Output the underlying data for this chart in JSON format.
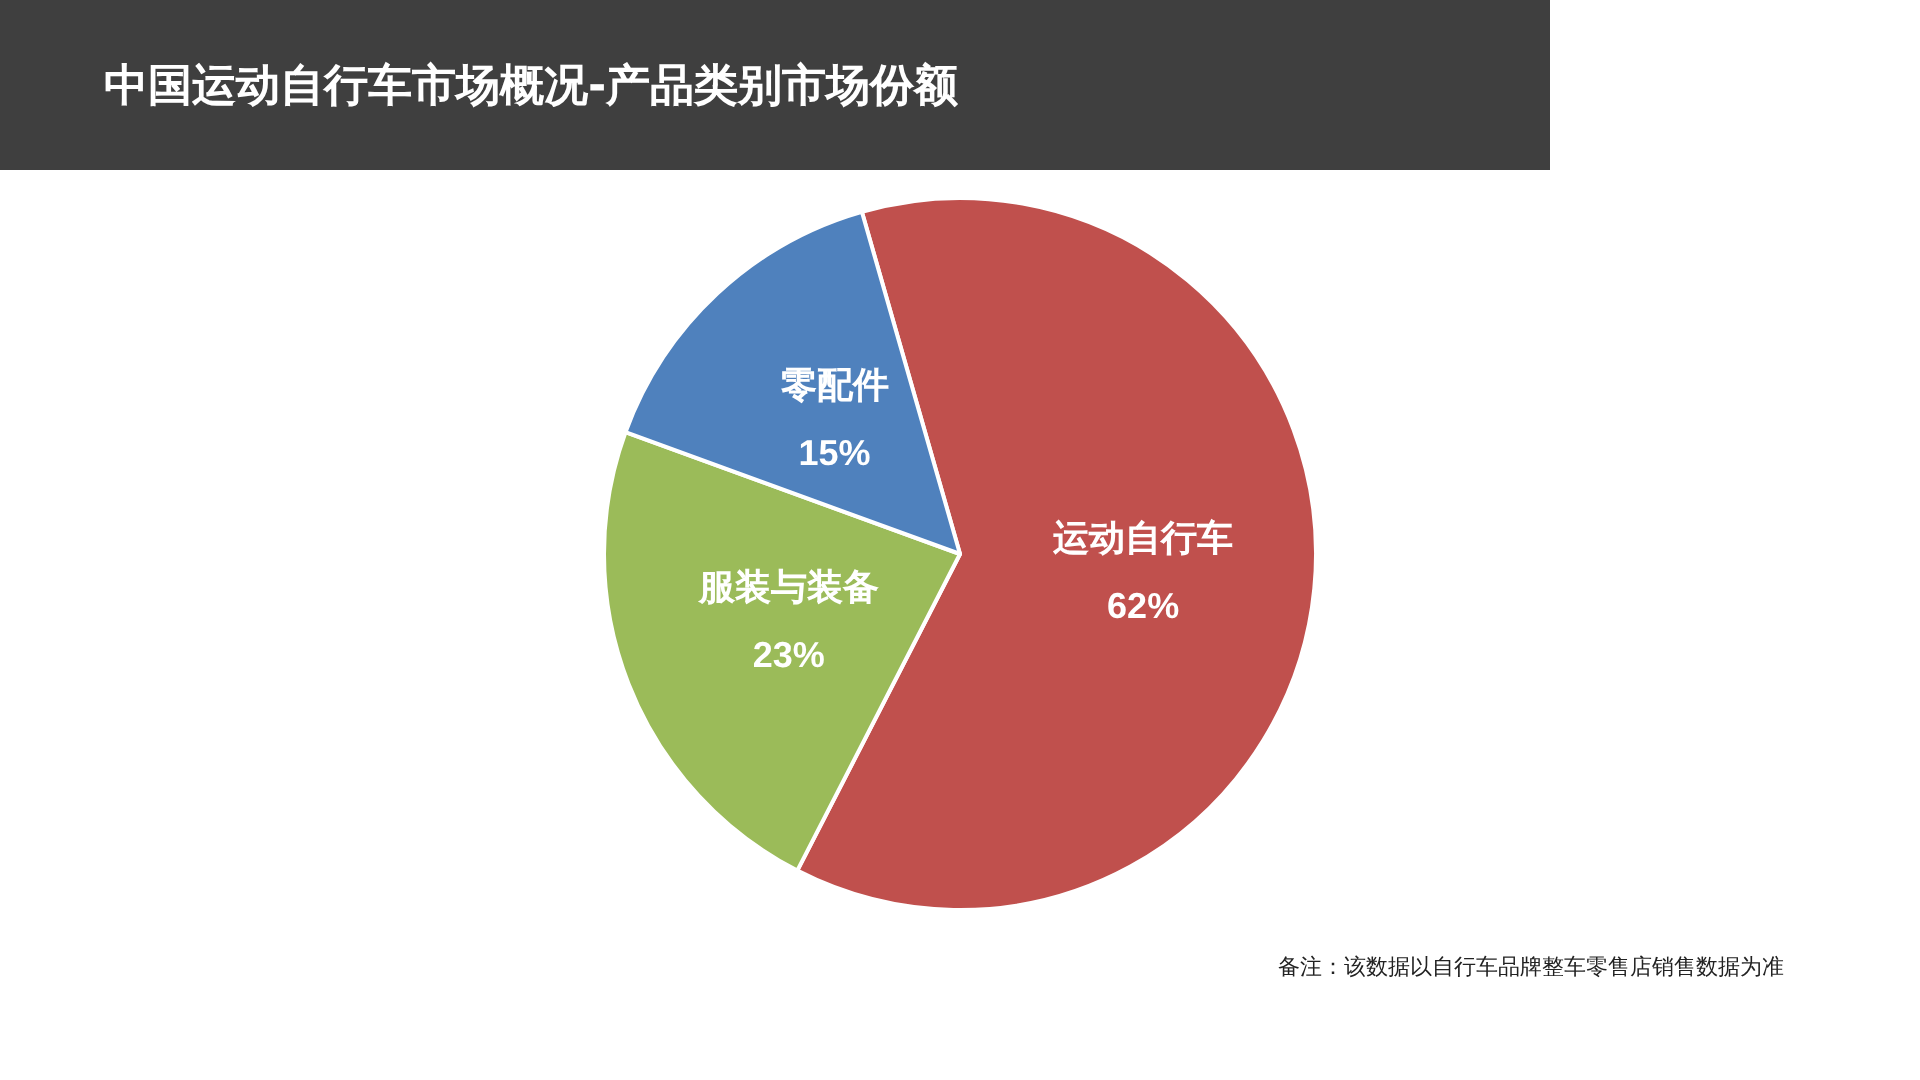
{
  "chart_data": {
    "type": "pie",
    "title": "中国运动自行车市场概况-产品类别市场份额",
    "categories": [
      "运动自行车",
      "服装与装备",
      "零配件"
    ],
    "values": [
      62,
      23,
      15
    ],
    "colors": [
      "#c0504d",
      "#9bbb59",
      "#4f81bd"
    ],
    "value_labels": [
      "62%",
      "23%",
      "15%"
    ],
    "annotations": [
      "备注：该数据以自行车品牌整车零售店销售数据为准"
    ]
  }
}
